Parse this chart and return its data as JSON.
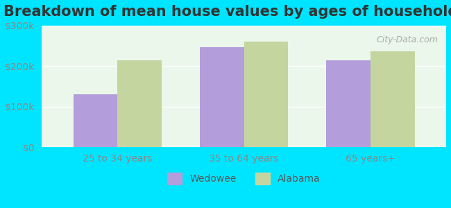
{
  "title": "Breakdown of mean house values by ages of householders",
  "categories": [
    "25 to 34 years",
    "35 to 64 years",
    "65 years+"
  ],
  "wedowee_values": [
    130000,
    247000,
    215000
  ],
  "alabama_values": [
    215000,
    260000,
    237000
  ],
  "wedowee_color": "#b39ddb",
  "alabama_color": "#c5d5a0",
  "ylim": [
    0,
    300000
  ],
  "yticks": [
    0,
    100000,
    200000,
    300000
  ],
  "ytick_labels": [
    "$0",
    "$100k",
    "$200k",
    "$300k"
  ],
  "bar_width": 0.35,
  "background_color": "#e0fffe",
  "plot_bg_gradient_top": "#e8f5e9",
  "plot_bg_gradient_bottom": "#f9ffe9",
  "legend_wedowee": "Wedowee",
  "legend_alabama": "Alabama",
  "title_fontsize": 15,
  "tick_fontsize": 10,
  "legend_fontsize": 10,
  "outer_bg": "#00e5ff"
}
